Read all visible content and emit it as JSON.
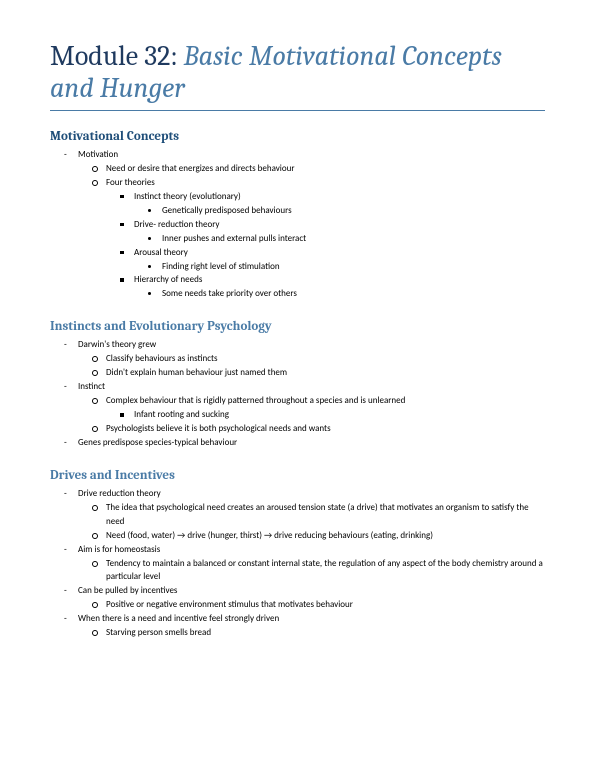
{
  "colors": {
    "title_dark": "#1f3a5f",
    "title_accent": "#4a7ba6",
    "rule": "#4a7ba6",
    "section_primary": "#1f4e79",
    "section_secondary": "#4a7ba6",
    "body_text": "#000000",
    "background": "#ffffff"
  },
  "typography": {
    "title_family": "Cambria, Georgia, serif",
    "body_family": "Calibri, Arial, sans-serif",
    "title_size_pt": 28,
    "section_size_pt": 13,
    "body_size_pt": 9
  },
  "title": {
    "num": "Module 32:",
    "sub": "Basic Motivational Concepts and Hunger"
  },
  "sections": [
    {
      "heading": "Motivational Concepts",
      "heading_style": "primary",
      "items": [
        {
          "t": "Motivation",
          "children": [
            {
              "t": "Need or desire that energizes and directs behaviour"
            },
            {
              "t": "Four theories",
              "children": [
                {
                  "t": "Instinct theory (evolutionary)",
                  "children": [
                    {
                      "t": "Genetically predisposed behaviours"
                    }
                  ]
                },
                {
                  "t": "Drive- reduction theory",
                  "children": [
                    {
                      "t": "Inner pushes and external pulls interact"
                    }
                  ]
                },
                {
                  "t": "Arousal theory",
                  "children": [
                    {
                      "t": "Finding right level of stimulation"
                    }
                  ]
                },
                {
                  "t": "Hierarchy of needs",
                  "children": [
                    {
                      "t": "Some needs take priority over others"
                    }
                  ]
                }
              ]
            }
          ]
        }
      ]
    },
    {
      "heading": "Instincts and Evolutionary Psychology",
      "heading_style": "secondary",
      "items": [
        {
          "t": "Darwin's theory grew",
          "children": [
            {
              "t": "Classify behaviours as instincts"
            },
            {
              "t": "Didn't explain human behaviour just named them"
            }
          ]
        },
        {
          "t": "Instinct",
          "children": [
            {
              "t": "Complex behaviour that is rigidly patterned throughout a species and is unlearned",
              "children": [
                {
                  "t": "Infant rooting and sucking"
                }
              ]
            },
            {
              "t": "Psychologists believe it is both psychological needs and wants"
            }
          ]
        },
        {
          "t": "Genes predispose species-typical behaviour"
        }
      ]
    },
    {
      "heading": "Drives and Incentives",
      "heading_style": "secondary",
      "items": [
        {
          "t": "Drive reduction theory",
          "children": [
            {
              "t": "The idea that psychological need creates an aroused tension state (a drive) that motivates an organism to satisfy the need"
            },
            {
              "t": "Need (food, water) → drive (hunger, thirst) → drive reducing behaviours (eating, drinking)"
            }
          ]
        },
        {
          "t": "Aim is for homeostasis",
          "children": [
            {
              "t": "Tendency to maintain a balanced or constant internal state, the regulation of any aspect of the body chemistry around a particular level"
            }
          ]
        },
        {
          "t": "Can be pulled by incentives",
          "children": [
            {
              "t": "Positive or negative environment stimulus that motivates behaviour"
            }
          ]
        },
        {
          "t": "When there is a need and incentive feel strongly driven",
          "children": [
            {
              "t": "Starving person smells bread"
            }
          ]
        }
      ]
    }
  ]
}
